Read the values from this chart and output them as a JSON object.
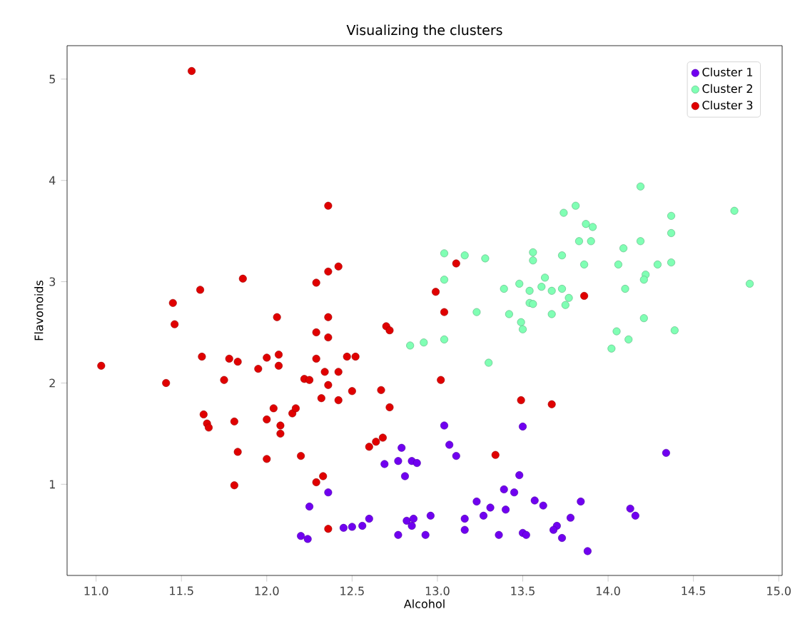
{
  "chart_data": {
    "type": "scatter",
    "title": "Visualizing the clusters",
    "xlabel": "Alcohol",
    "ylabel": "Flavonoids",
    "xlim": [
      10.83,
      15.02
    ],
    "ylim": [
      0.1,
      5.33
    ],
    "xticks": [
      {
        "value": 11,
        "label": "11.0"
      },
      {
        "value": 11.5,
        "label": "11.5"
      },
      {
        "value": 12,
        "label": "12.0"
      },
      {
        "value": 12.5,
        "label": "12.5"
      },
      {
        "value": 13,
        "label": "13.0"
      },
      {
        "value": 13.5,
        "label": "13.5"
      },
      {
        "value": 14,
        "label": "14.0"
      },
      {
        "value": 14.5,
        "label": "14.5"
      },
      {
        "value": 15,
        "label": "15.0"
      }
    ],
    "yticks": [
      1,
      2,
      3,
      4,
      5
    ],
    "grid": false,
    "legend": "top right",
    "marker": "circle",
    "series": [
      {
        "name": "Cluster 1",
        "color": "#7000f0",
        "x": [
          12.79,
          12.69,
          12.77,
          12.85,
          12.81,
          12.36,
          12.25,
          12.2,
          12.24,
          12.45,
          12.5,
          12.56,
          12.6,
          12.77,
          12.82,
          12.85,
          13.04,
          13.07,
          13.11,
          13.5,
          12.88,
          14.34,
          13.48,
          13.39,
          13.45,
          13.23,
          13.31,
          13.4,
          13.27,
          13.16,
          13.16,
          13.36,
          13.5,
          13.52,
          13.57,
          13.62,
          13.7,
          13.68,
          13.73,
          13.78,
          13.84,
          13.88,
          14.13,
          14.16,
          12.96,
          12.93,
          12.86
        ],
        "values": [
          1.36,
          1.2,
          1.23,
          1.23,
          1.08,
          0.92,
          0.78,
          0.49,
          0.46,
          0.57,
          0.58,
          0.59,
          0.66,
          0.5,
          0.64,
          0.59,
          1.58,
          1.39,
          1.28,
          1.57,
          1.21,
          1.31,
          1.09,
          0.95,
          0.92,
          0.83,
          0.77,
          0.75,
          0.69,
          0.66,
          0.55,
          0.5,
          0.52,
          0.5,
          0.84,
          0.79,
          0.59,
          0.55,
          0.47,
          0.67,
          0.83,
          0.34,
          0.76,
          0.69,
          0.69,
          0.5,
          0.66
        ]
      },
      {
        "name": "Cluster 2",
        "color": "#80ffb4",
        "x": [
          14.19,
          14.74,
          13.81,
          13.74,
          13.87,
          13.91,
          14.37,
          14.37,
          13.83,
          13.9,
          14.09,
          14.19,
          13.73,
          13.56,
          13.28,
          13.04,
          13.16,
          13.56,
          13.86,
          14.06,
          14.29,
          14.37,
          14.22,
          14.21,
          14.83,
          14.1,
          13.63,
          13.61,
          13.73,
          13.77,
          13.75,
          13.67,
          13.48,
          13.39,
          13.54,
          13.04,
          13.54,
          12.84,
          12.92,
          13.04,
          13.3,
          13.49,
          13.5,
          13.42,
          13.56,
          13.67,
          13.75,
          14.21,
          14.05,
          14.12,
          14.02,
          14.39,
          13.23
        ],
        "values": [
          3.94,
          3.7,
          3.75,
          3.68,
          3.57,
          3.54,
          3.65,
          3.48,
          3.4,
          3.4,
          3.33,
          3.4,
          3.26,
          3.29,
          3.23,
          3.28,
          3.26,
          3.21,
          3.17,
          3.17,
          3.17,
          3.19,
          3.07,
          3.02,
          2.98,
          2.93,
          3.04,
          2.95,
          2.93,
          2.84,
          null,
          2.91,
          2.98,
          2.93,
          2.79,
          3.02,
          2.91,
          2.37,
          2.4,
          2.43,
          2.2,
          2.6,
          2.53,
          2.68,
          2.78,
          2.68,
          2.77,
          2.64,
          2.51,
          2.43,
          2.34,
          2.52,
          2.7
        ]
      },
      {
        "name": "Cluster 3",
        "color": "#e00000",
        "x": [
          11.56,
          12.36,
          11.45,
          11.61,
          11.86,
          12.29,
          12.36,
          12.42,
          13.11,
          12.99,
          13.04,
          13.86,
          11.46,
          11.03,
          11.41,
          11.62,
          11.78,
          11.83,
          11.75,
          11.95,
          12.0,
          12.07,
          12.07,
          12.06,
          12.29,
          12.36,
          12.36,
          12.29,
          12.34,
          12.42,
          12.22,
          12.25,
          12.36,
          12.32,
          12.42,
          12.47,
          12.52,
          12.5,
          12.7,
          12.72,
          12.67,
          12.72,
          11.63,
          11.65,
          11.66,
          11.81,
          11.83,
          11.81,
          12.0,
          12.04,
          12.08,
          12.08,
          12.15,
          12.17,
          12.0,
          12.2,
          12.29,
          12.33,
          12.36,
          12.6,
          12.64,
          12.68,
          13.02,
          13.49,
          13.67,
          13.34
        ],
        "values": [
          5.08,
          3.75,
          2.79,
          2.92,
          3.03,
          2.99,
          3.1,
          3.15,
          3.18,
          2.9,
          2.7,
          2.86,
          2.58,
          2.17,
          2.0,
          2.26,
          2.24,
          2.21,
          2.03,
          2.14,
          2.25,
          2.28,
          2.17,
          2.65,
          2.5,
          2.65,
          2.45,
          2.24,
          2.11,
          2.11,
          2.04,
          2.03,
          1.98,
          1.85,
          1.83,
          2.26,
          2.26,
          1.92,
          2.56,
          2.52,
          1.93,
          1.76,
          1.69,
          1.6,
          1.56,
          1.62,
          1.32,
          0.99,
          1.64,
          1.75,
          1.58,
          1.5,
          1.7,
          1.75,
          1.25,
          1.28,
          1.02,
          1.08,
          0.56,
          1.37,
          1.42,
          1.46,
          2.03,
          1.83,
          1.79,
          1.29
        ]
      }
    ]
  }
}
